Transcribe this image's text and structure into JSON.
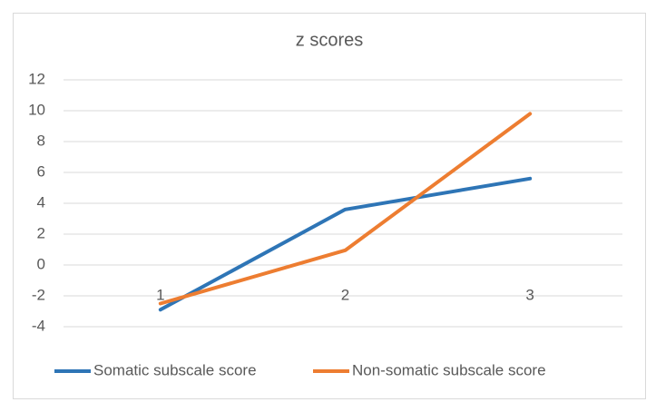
{
  "chart_data": {
    "type": "line",
    "title": "z scores",
    "categories": [
      "1",
      "2",
      "3"
    ],
    "series": [
      {
        "name": "Somatic subscale score",
        "color": "#2e75b6",
        "values": [
          -2.9,
          3.6,
          5.6
        ]
      },
      {
        "name": "Non-somatic subscale score",
        "color": "#ed7d31",
        "values": [
          -2.5,
          0.95,
          9.8
        ]
      }
    ],
    "ylim": [
      -4,
      12
    ],
    "yticks": [
      -4,
      -2,
      0,
      2,
      4,
      6,
      8,
      10,
      12
    ],
    "grid": true,
    "legend": "bottom"
  }
}
